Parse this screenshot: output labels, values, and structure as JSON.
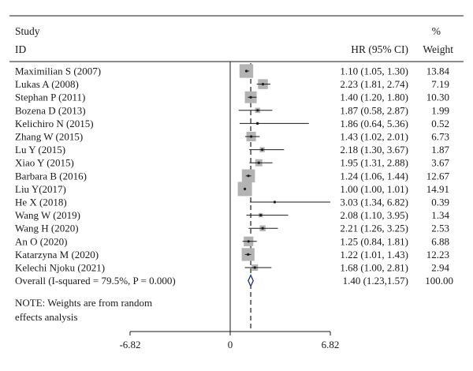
{
  "header": {
    "study_line1": "Study",
    "study_line2": "ID",
    "effect_label": "HR (95% CI)",
    "weight_line1": "%",
    "weight_line2": "Weight"
  },
  "note": {
    "line1": "NOTE: Weights are from random",
    "line2": "effects analysis"
  },
  "chart_data": {
    "type": "forest",
    "xlim": [
      -6.82,
      6.82
    ],
    "x_ticks": [
      -6.82,
      0,
      6.82
    ],
    "x_tick_labels": [
      "-6.82",
      "0",
      "6.82"
    ],
    "null_line": 0,
    "overall_line": 1.4,
    "studies": [
      {
        "label": "Maximilian S (2007)",
        "est": 1.1,
        "lo": 1.05,
        "hi": 1.3,
        "ci_text": "1.10 (1.05, 1.30)",
        "weight": 13.84,
        "weight_text": "13.84"
      },
      {
        "label": "Lukas A (2008)",
        "est": 2.23,
        "lo": 1.81,
        "hi": 2.74,
        "ci_text": "2.23 (1.81, 2.74)",
        "weight": 7.19,
        "weight_text": "7.19"
      },
      {
        "label": "Stephan P (2011)",
        "est": 1.4,
        "lo": 1.2,
        "hi": 1.8,
        "ci_text": "1.40 (1.20, 1.80)",
        "weight": 10.3,
        "weight_text": "10.30"
      },
      {
        "label": "Bozena D (2013)",
        "est": 1.87,
        "lo": 0.58,
        "hi": 2.87,
        "ci_text": "1.87 (0.58, 2.87)",
        "weight": 1.99,
        "weight_text": "1.99"
      },
      {
        "label": "Kelichiro N (2015)",
        "est": 1.86,
        "lo": 0.64,
        "hi": 5.36,
        "ci_text": "1.86 (0.64, 5.36)",
        "weight": 0.52,
        "weight_text": "0.52"
      },
      {
        "label": "Zhang W (2015)",
        "est": 1.43,
        "lo": 1.02,
        "hi": 2.01,
        "ci_text": "1.43 (1.02, 2.01)",
        "weight": 6.73,
        "weight_text": "6.73"
      },
      {
        "label": "Lu Y (2015)",
        "est": 2.18,
        "lo": 1.3,
        "hi": 3.67,
        "ci_text": "2.18 (1.30, 3.67)",
        "weight": 1.87,
        "weight_text": "1.87"
      },
      {
        "label": "Xiao Y (2015)",
        "est": 1.95,
        "lo": 1.31,
        "hi": 2.88,
        "ci_text": "1.95 (1.31, 2.88)",
        "weight": 3.67,
        "weight_text": "3.67"
      },
      {
        "label": "Barbara B (2016)",
        "est": 1.24,
        "lo": 1.06,
        "hi": 1.44,
        "ci_text": "1.24 (1.06, 1.44)",
        "weight": 12.67,
        "weight_text": "12.67"
      },
      {
        "label": "Liu Y(2017)",
        "est": 1.0,
        "lo": 1.0,
        "hi": 1.01,
        "ci_text": "1.00 (1.00, 1.01)",
        "weight": 14.91,
        "weight_text": "14.91"
      },
      {
        "label": "He X (2018)",
        "est": 3.03,
        "lo": 1.34,
        "hi": 6.82,
        "ci_text": "3.03 (1.34, 6.82)",
        "weight": 0.39,
        "weight_text": "0.39"
      },
      {
        "label": "Wang W (2019)",
        "est": 2.08,
        "lo": 1.1,
        "hi": 3.95,
        "ci_text": "2.08 (1.10, 3.95)",
        "weight": 1.34,
        "weight_text": "1.34"
      },
      {
        "label": "Wang H (2020)",
        "est": 2.21,
        "lo": 1.26,
        "hi": 3.25,
        "ci_text": "2.21 (1.26, 3.25)",
        "weight": 2.53,
        "weight_text": "2.53"
      },
      {
        "label": "An O (2020)",
        "est": 1.25,
        "lo": 0.84,
        "hi": 1.81,
        "ci_text": "1.25 (0.84, 1.81)",
        "weight": 6.88,
        "weight_text": "6.88"
      },
      {
        "label": "Katarzyna M (2020)",
        "est": 1.22,
        "lo": 1.01,
        "hi": 1.43,
        "ci_text": "1.22 (1.01, 1.43)",
        "weight": 12.23,
        "weight_text": "12.23"
      },
      {
        "label": "Kelechi Njoku (2021)",
        "est": 1.68,
        "lo": 1.0,
        "hi": 2.81,
        "ci_text": "1.68 (1.00, 2.81)",
        "weight": 2.94,
        "weight_text": "2.94"
      }
    ],
    "overall": {
      "label": "Overall (I-squared = 79.5%, P = 0.000)",
      "est": 1.4,
      "lo": 1.23,
      "hi": 1.57,
      "ci_text": "1.40 (1.23,1.57)",
      "weight_text": "100.00"
    },
    "colors": {
      "box": "#b3b3b3",
      "line": "#1a1a1a",
      "diamond": "#1e2a8c",
      "axis": "#1a1a1a"
    }
  }
}
